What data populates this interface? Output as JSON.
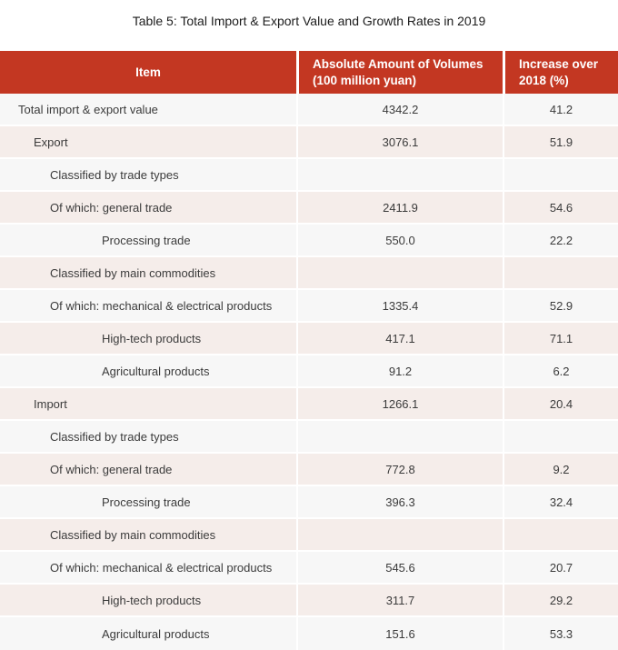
{
  "page": {
    "title": "Table 5: Total Import & Export Value and Growth Rates in 2019"
  },
  "colors": {
    "header_bg": "#C33722",
    "header_text": "#FFFFFF",
    "row_light": "#F7F7F7",
    "row_pink": "#F5EDEA",
    "divider": "#FFFFFF",
    "text": "#3B3B3B"
  },
  "table": {
    "columns": [
      "Item",
      "Absolute Amount of Volumes (100 million yuan)",
      "Increase over 2018 (%)"
    ],
    "rows": [
      {
        "label": "Total import & export value",
        "indent": 0,
        "amount": "4342.2",
        "increase": "41.2"
      },
      {
        "label": "Export",
        "indent": 1,
        "amount": "3076.1",
        "increase": "51.9"
      },
      {
        "label": "Classified by trade types",
        "indent": 2,
        "amount": "",
        "increase": ""
      },
      {
        "label": "Of which: general trade",
        "indent": 2,
        "amount": "2411.9",
        "increase": "54.6"
      },
      {
        "label": "Processing trade",
        "indent": 3,
        "amount": "550.0",
        "increase": "22.2"
      },
      {
        "label": "Classified by main commodities",
        "indent": 2,
        "amount": "",
        "increase": ""
      },
      {
        "label": "Of which: mechanical & electrical products",
        "indent": 2,
        "amount": "1335.4",
        "increase": "52.9"
      },
      {
        "label": "High-tech products",
        "indent": 3,
        "amount": "417.1",
        "increase": "71.1"
      },
      {
        "label": "Agricultural products",
        "indent": 3,
        "amount": "91.2",
        "increase": "6.2"
      },
      {
        "label": "Import",
        "indent": 1,
        "amount": "1266.1",
        "increase": "20.4"
      },
      {
        "label": "Classified by trade types",
        "indent": 2,
        "amount": "",
        "increase": ""
      },
      {
        "label": "Of which: general trade",
        "indent": 2,
        "amount": "772.8",
        "increase": "9.2"
      },
      {
        "label": "Processing trade",
        "indent": 3,
        "amount": "396.3",
        "increase": "32.4"
      },
      {
        "label": "Classified by main commodities",
        "indent": 2,
        "amount": "",
        "increase": ""
      },
      {
        "label": "Of which: mechanical & electrical products",
        "indent": 2,
        "amount": "545.6",
        "increase": "20.7"
      },
      {
        "label": "High-tech products",
        "indent": 3,
        "amount": "311.7",
        "increase": "29.2"
      },
      {
        "label": "Agricultural products",
        "indent": 3,
        "amount": "151.6",
        "increase": "53.3"
      }
    ]
  },
  "chart_data": {
    "type": "table",
    "title": "Table 5: Total Import & Export Value and Growth Rates in 2019",
    "columns": [
      "Item",
      "Absolute Amount of Volumes (100 million yuan)",
      "Increase over 2018 (%)"
    ],
    "rows": [
      [
        "Total import & export value",
        4342.2,
        41.2
      ],
      [
        "Export",
        3076.1,
        51.9
      ],
      [
        "Classified by trade types",
        null,
        null
      ],
      [
        "Of which: general trade",
        2411.9,
        54.6
      ],
      [
        "Processing trade",
        550.0,
        22.2
      ],
      [
        "Classified by main commodities",
        null,
        null
      ],
      [
        "Of which: mechanical & electrical products",
        1335.4,
        52.9
      ],
      [
        "High-tech products",
        417.1,
        71.1
      ],
      [
        "Agricultural products",
        91.2,
        6.2
      ],
      [
        "Import",
        1266.1,
        20.4
      ],
      [
        "Classified by trade types",
        null,
        null
      ],
      [
        "Of which: general trade",
        772.8,
        9.2
      ],
      [
        "Processing trade",
        396.3,
        32.4
      ],
      [
        "Classified by main commodities",
        null,
        null
      ],
      [
        "Of which: mechanical & electrical products",
        545.6,
        20.7
      ],
      [
        "High-tech products",
        311.7,
        29.2
      ],
      [
        "Agricultural products",
        151.6,
        53.3
      ]
    ]
  }
}
